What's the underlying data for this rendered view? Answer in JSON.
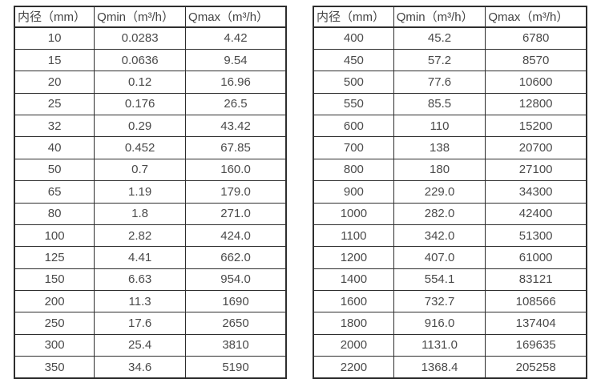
{
  "colors": {
    "border": "#2e2e2e",
    "text": "#4a4a4a",
    "background": "#ffffff"
  },
  "tables": [
    {
      "name": "flow-spec-table-small-diameters",
      "headers": [
        "内径（mm）",
        "Qmin（m³/h）",
        "Qmax（m³/h）"
      ],
      "rows": [
        [
          "10",
          "0.0283",
          "4.42"
        ],
        [
          "15",
          "0.0636",
          "9.54"
        ],
        [
          "20",
          "0.12",
          "16.96"
        ],
        [
          "25",
          "0.176",
          "26.5"
        ],
        [
          "32",
          "0.29",
          "43.42"
        ],
        [
          "40",
          "0.452",
          "67.85"
        ],
        [
          "50",
          "0.7",
          "160.0"
        ],
        [
          "65",
          "1.19",
          "179.0"
        ],
        [
          "80",
          "1.8",
          "271.0"
        ],
        [
          "100",
          "2.82",
          "424.0"
        ],
        [
          "125",
          "4.41",
          "662.0"
        ],
        [
          "150",
          "6.63",
          "954.0"
        ],
        [
          "200",
          "11.3",
          "1690"
        ],
        [
          "250",
          "17.6",
          "2650"
        ],
        [
          "300",
          "25.4",
          "3810"
        ],
        [
          "350",
          "34.6",
          "5190"
        ]
      ]
    },
    {
      "name": "flow-spec-table-large-diameters",
      "headers": [
        "内径（mm）",
        "Qmin（m³/h）",
        "Qmax（m³/h）"
      ],
      "rows": [
        [
          "400",
          "45.2",
          "6780"
        ],
        [
          "450",
          "57.2",
          "8570"
        ],
        [
          "500",
          "77.6",
          "10600"
        ],
        [
          "550",
          "85.5",
          "12800"
        ],
        [
          "600",
          "110",
          "15200"
        ],
        [
          "700",
          "138",
          "20700"
        ],
        [
          "800",
          "180",
          "27100"
        ],
        [
          "900",
          "229.0",
          "34300"
        ],
        [
          "1000",
          "282.0",
          "42400"
        ],
        [
          "1100",
          "342.0",
          "51300"
        ],
        [
          "1200",
          "407.0",
          "61000"
        ],
        [
          "1400",
          "554.1",
          "83121"
        ],
        [
          "1600",
          "732.7",
          "108566"
        ],
        [
          "1800",
          "916.0",
          "137404"
        ],
        [
          "2000",
          "1131.0",
          "169635"
        ],
        [
          "2200",
          "1368.4",
          "205258"
        ]
      ]
    }
  ]
}
